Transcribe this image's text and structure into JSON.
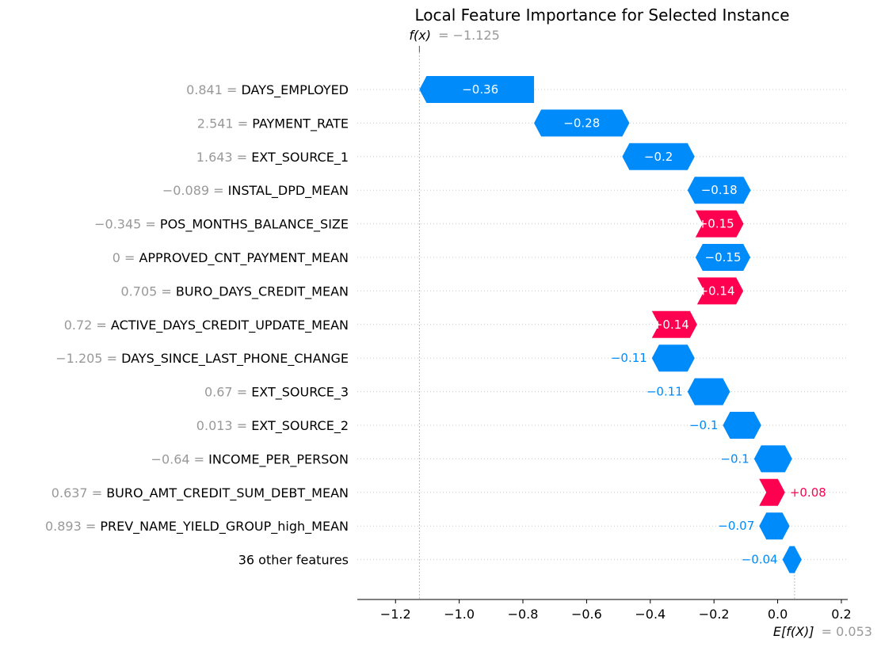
{
  "chart_data": {
    "type": "waterfall",
    "title": "Local Feature Importance for Selected Instance",
    "fx": {
      "label": "f(x)",
      "value_text": "= −1.125",
      "value": -1.125
    },
    "efx": {
      "label": "E[f(X)]",
      "value_text": "= 0.053",
      "value": 0.053
    },
    "xlim": [
      -1.32,
      0.22
    ],
    "xticks": [
      -1.2,
      -1.0,
      -0.8,
      -0.6,
      -0.4,
      -0.2,
      0.0,
      0.2
    ],
    "xtick_labels": [
      "−1.2",
      "−1.0",
      "−0.8",
      "−0.6",
      "−0.4",
      "−0.2",
      "0.0",
      "0.2"
    ],
    "colors": {
      "positive": "#ff0051",
      "negative": "#008bfb",
      "feature_value": "#999999"
    },
    "features": [
      {
        "value_text": "0.841",
        "name": "DAYS_EMPLOYED",
        "label": "−0.36",
        "start": -0.765,
        "end": -1.125
      },
      {
        "value_text": "2.541",
        "name": "PAYMENT_RATE",
        "label": "−0.28",
        "start": -0.488,
        "end": -0.765
      },
      {
        "value_text": "1.643",
        "name": "EXT_SOURCE_1",
        "label": "−0.2",
        "start": -0.283,
        "end": -0.488
      },
      {
        "value_text": "−0.089",
        "name": "INSTAL_DPD_MEAN",
        "label": "−0.18",
        "start": -0.107,
        "end": -0.283
      },
      {
        "value_text": "−0.345",
        "name": "POS_MONTHS_BALANCE_SIZE",
        "label": "+0.15",
        "start": -0.258,
        "end": -0.107
      },
      {
        "value_text": "0",
        "name": "APPROVED_CNT_PAYMENT_MEAN",
        "label": "−0.15",
        "start": -0.108,
        "end": -0.258
      },
      {
        "value_text": "0.705",
        "name": "BURO_DAYS_CREDIT_MEAN",
        "label": "+0.14",
        "start": -0.253,
        "end": -0.108
      },
      {
        "value_text": "0.72",
        "name": "ACTIVE_DAYS_CREDIT_UPDATE_MEAN",
        "label": "+0.14",
        "start": -0.395,
        "end": -0.253
      },
      {
        "value_text": "−1.205",
        "name": "DAYS_SINCE_LAST_PHONE_CHANGE",
        "label": "−0.11",
        "start": -0.283,
        "end": -0.395
      },
      {
        "value_text": "0.67",
        "name": "EXT_SOURCE_3",
        "label": "−0.11",
        "start": -0.172,
        "end": -0.283
      },
      {
        "value_text": "0.013",
        "name": "EXT_SOURCE_2",
        "label": "−0.1",
        "start": -0.074,
        "end": -0.172
      },
      {
        "value_text": "−0.64",
        "name": "INCOME_PER_PERSON",
        "label": "−0.1",
        "start": 0.023,
        "end": -0.074
      },
      {
        "value_text": "0.637",
        "name": "BURO_AMT_CREDIT_SUM_DEBT_MEAN",
        "label": "+0.08",
        "start": -0.058,
        "end": 0.023
      },
      {
        "value_text": "0.893",
        "name": "PREV_NAME_YIELD_GROUP_high_MEAN",
        "label": "−0.07",
        "start": 0.015,
        "end": -0.058
      },
      {
        "value_text": "",
        "name": "36 other features",
        "label": "−0.04",
        "start": 0.053,
        "end": 0.015
      }
    ]
  }
}
